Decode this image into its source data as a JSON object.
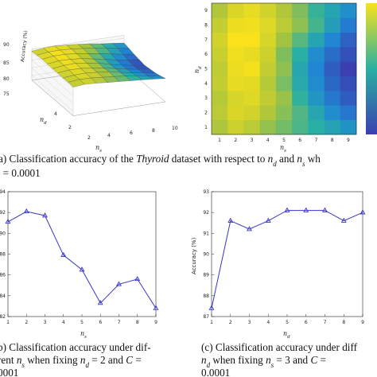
{
  "figure": {
    "caption_a_line1": "a) Classification accuracy of the Thyroid dataset with respect to n",
    "caption_a_line2": "= 0.0001",
    "caption_b_line1": "b)  Classification accuracy under dif-",
    "caption_b_line2": "rent n",
    "caption_b_line3": "0001",
    "caption_c_line1": "(c)  Classification accuracy under diff",
    "caption_c_line2": "n",
    "caption_c_line3": "0.0001"
  },
  "chart_data": [
    {
      "type": "surface3d",
      "zlabel": "Accuracy (%)",
      "xlabel": "n_s",
      "ylabel": "n_d",
      "z_ticks": [
        "75",
        "80",
        "85",
        "90"
      ],
      "x_ticks": [
        "2",
        "4",
        "6",
        "8",
        "10"
      ],
      "y_ticks": [
        "2",
        "4"
      ],
      "colors": {
        "high": "#f9e21b",
        "mid": "#2ab0a3",
        "low": "#1a6fc4"
      }
    },
    {
      "type": "heatmap",
      "xlabel": "n_s",
      "ylabel": "n_d",
      "x_ticks": [
        "1",
        "2",
        "3",
        "4",
        "5",
        "6",
        "7",
        "8",
        "9"
      ],
      "y_ticks": [
        "1",
        "2",
        "3",
        "4",
        "5",
        "6",
        "7",
        "8",
        "9"
      ],
      "values": [
        [
          90.5,
          91.2,
          90.8,
          90.1,
          89.6,
          89.0,
          88.4,
          87.8,
          87.1
        ],
        [
          90.8,
          91.5,
          91.3,
          90.6,
          89.9,
          89.1,
          88.0,
          86.8,
          85.9
        ],
        [
          90.7,
          91.4,
          91.6,
          90.9,
          90.2,
          88.6,
          87.2,
          86.0,
          85.0
        ],
        [
          91.0,
          91.8,
          91.7,
          90.7,
          89.7,
          88.2,
          86.7,
          85.4,
          84.5
        ],
        [
          90.9,
          91.9,
          92.1,
          91.0,
          90.0,
          88.0,
          86.5,
          85.0,
          84.0
        ],
        [
          91.1,
          92.0,
          91.8,
          91.2,
          89.8,
          88.5,
          86.8,
          85.6,
          84.6
        ],
        [
          91.3,
          92.2,
          92.2,
          91.4,
          90.3,
          89.2,
          87.9,
          86.5,
          85.2
        ],
        [
          91.0,
          91.9,
          92.0,
          91.6,
          90.8,
          90.0,
          88.9,
          87.6,
          86.1
        ],
        [
          90.6,
          91.5,
          91.8,
          91.3,
          90.6,
          89.8,
          88.7,
          87.9,
          86.9
        ]
      ]
    },
    {
      "type": "line",
      "xlabel": "n_s",
      "ylabel": "",
      "x": [
        1,
        2,
        3,
        4,
        5,
        6,
        7,
        8,
        9
      ],
      "series": [
        {
          "values": [
            91.1,
            92.1,
            91.7,
            87.9,
            86.5,
            83.3,
            85.1,
            85.6,
            82.8
          ]
        }
      ],
      "xlim": [
        1,
        9
      ],
      "ylim": [
        82,
        94
      ],
      "y_ticks": [
        82,
        84,
        86,
        88,
        90,
        92,
        94
      ],
      "color": "#3636c8"
    },
    {
      "type": "line",
      "xlabel": "n_d",
      "ylabel": "Accuracy (%)",
      "x": [
        1,
        2,
        3,
        4,
        5,
        6,
        7,
        8,
        9
      ],
      "series": [
        {
          "values": [
            87.4,
            91.6,
            91.2,
            91.6,
            92.1,
            92.1,
            92.1,
            91.6,
            92.0
          ]
        }
      ],
      "xlim": [
        1,
        9
      ],
      "ylim": [
        87,
        93
      ],
      "y_ticks": [
        87,
        88,
        89,
        90,
        91,
        92,
        93
      ],
      "color": "#3636c8"
    }
  ]
}
